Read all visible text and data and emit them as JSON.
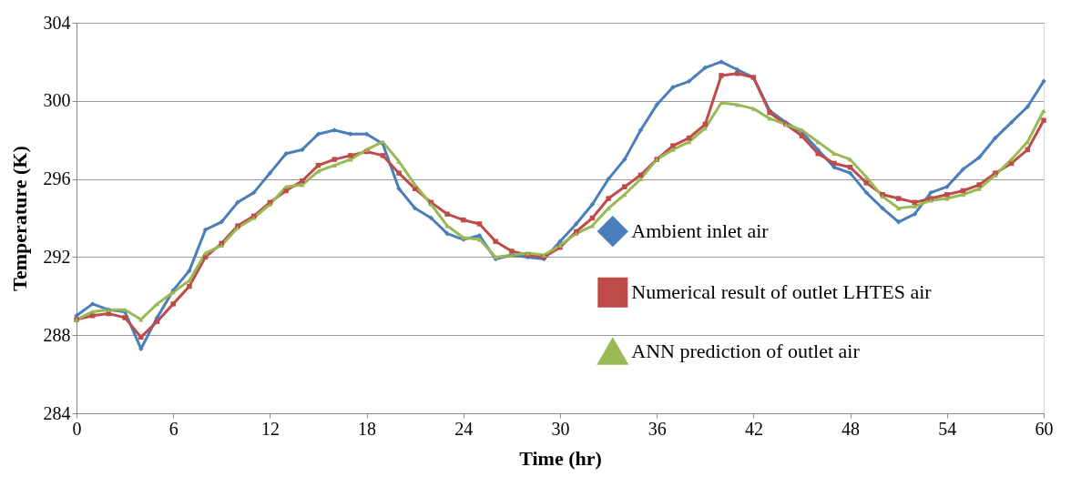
{
  "chart_data": {
    "type": "line",
    "xlabel": "Time (hr)",
    "ylabel": "Temperature  (K)",
    "x": [
      0,
      1,
      2,
      3,
      4,
      5,
      6,
      7,
      8,
      9,
      10,
      11,
      12,
      13,
      14,
      15,
      16,
      17,
      18,
      19,
      20,
      21,
      22,
      23,
      24,
      25,
      26,
      27,
      28,
      29,
      30,
      31,
      32,
      33,
      34,
      35,
      36,
      37,
      38,
      39,
      40,
      41,
      42,
      43,
      44,
      45,
      46,
      47,
      48,
      49,
      50,
      51,
      52,
      53,
      54,
      55,
      56,
      57,
      58,
      59,
      60
    ],
    "xlim": [
      0,
      60
    ],
    "xticks": [
      0,
      6,
      12,
      18,
      24,
      30,
      36,
      42,
      48,
      54,
      60
    ],
    "ylim": [
      284,
      304
    ],
    "yticks": [
      284,
      288,
      292,
      296,
      300,
      304
    ],
    "grid": "y",
    "legend": "right",
    "series": [
      {
        "name": "Ambient inlet air",
        "color": "#4a7ebb",
        "marker": "diamond",
        "values": [
          289.0,
          289.6,
          289.3,
          289.2,
          287.3,
          288.9,
          290.3,
          291.3,
          293.4,
          293.8,
          294.8,
          295.3,
          296.3,
          297.3,
          297.5,
          298.3,
          298.5,
          298.3,
          298.3,
          297.8,
          295.5,
          294.5,
          294.0,
          293.2,
          292.9,
          293.1,
          291.9,
          292.1,
          292.0,
          291.9,
          292.8,
          293.7,
          294.7,
          296.0,
          297.0,
          298.5,
          299.8,
          300.7,
          301.0,
          301.7,
          302.0,
          301.6,
          301.2,
          299.5,
          298.9,
          298.4,
          297.5,
          296.6,
          296.3,
          295.3,
          294.5,
          293.8,
          294.2,
          295.3,
          295.6,
          296.5,
          297.1,
          298.1,
          298.9,
          299.7,
          301.0
        ]
      },
      {
        "name": "Numerical result of outlet LHTES air",
        "color": "#be4b48",
        "marker": "square",
        "values": [
          288.8,
          289.0,
          289.1,
          288.9,
          287.9,
          288.7,
          289.6,
          290.5,
          292.0,
          292.7,
          293.6,
          294.1,
          294.8,
          295.4,
          295.9,
          296.7,
          297.0,
          297.2,
          297.4,
          297.2,
          296.3,
          295.5,
          294.8,
          294.2,
          293.9,
          293.7,
          292.8,
          292.3,
          292.1,
          292.0,
          292.5,
          293.3,
          294.0,
          295.0,
          295.6,
          296.2,
          297.0,
          297.7,
          298.1,
          298.8,
          301.3,
          301.4,
          301.2,
          299.4,
          298.8,
          298.2,
          297.3,
          296.8,
          296.6,
          295.8,
          295.2,
          295.0,
          294.8,
          295.0,
          295.2,
          295.4,
          295.7,
          296.3,
          296.8,
          297.5,
          299.0
        ]
      },
      {
        "name": "ANN prediction of outlet air",
        "color": "#98b954",
        "marker": "triangle",
        "values": [
          288.8,
          289.2,
          289.3,
          289.3,
          288.8,
          289.6,
          290.2,
          290.8,
          292.2,
          292.6,
          293.5,
          294.0,
          294.7,
          295.6,
          295.7,
          296.4,
          296.7,
          297.0,
          297.5,
          297.9,
          296.9,
          295.7,
          294.7,
          293.6,
          293.0,
          292.9,
          292.0,
          292.1,
          292.2,
          292.1,
          292.6,
          293.2,
          293.6,
          294.5,
          295.2,
          296.0,
          297.0,
          297.5,
          297.9,
          298.6,
          299.9,
          299.8,
          299.6,
          299.1,
          298.8,
          298.5,
          297.9,
          297.3,
          297.0,
          296.1,
          295.1,
          294.5,
          294.6,
          294.9,
          295.0,
          295.2,
          295.5,
          296.2,
          297.0,
          297.9,
          299.5
        ]
      }
    ]
  }
}
